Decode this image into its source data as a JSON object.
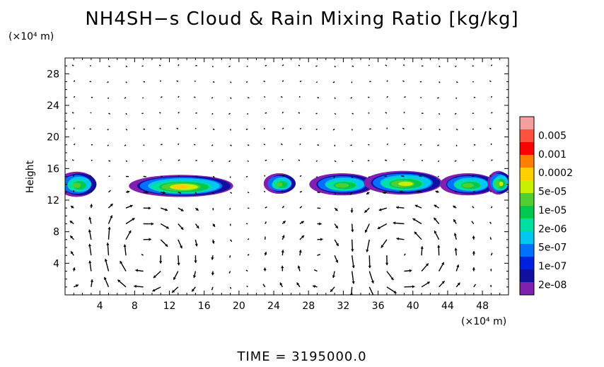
{
  "chart_data": {
    "type": "heatmap",
    "title": "NH4SH−s Cloud & Rain Mixing Ratio [kg/kg]",
    "ylabel": "Height",
    "x_unit": "(×10⁴ m)",
    "y_unit": "(×10⁴ m)",
    "footer": "TIME = 3195000.0",
    "xlim": [
      0,
      51
    ],
    "ylim": [
      0,
      30
    ],
    "x_ticks": [
      4,
      8,
      12,
      16,
      20,
      24,
      28,
      32,
      36,
      40,
      44,
      48
    ],
    "y_ticks": [
      4,
      8,
      12,
      16,
      20,
      24,
      28
    ],
    "colorbar": {
      "labels": [
        "0.005",
        "0.001",
        "0.0002",
        "5e-05",
        "1e-05",
        "2e-06",
        "5e-07",
        "1e-07",
        "2e-08"
      ],
      "colors": [
        "#f4a0a0",
        "#ff5040",
        "#ff0000",
        "#ff8000",
        "#ffd000",
        "#c8f000",
        "#50d030",
        "#00c850",
        "#00e0a0",
        "#00c8f0",
        "#0070ff",
        "#0020e0",
        "#1010a0",
        "#8020b0"
      ]
    },
    "cloud_layer": {
      "y_range": [
        12.3,
        16.3
      ],
      "blobs": [
        {
          "x": 1.5,
          "y": 14.0,
          "w": 4.5,
          "h": 3.2,
          "level": 6
        },
        {
          "x": 13.5,
          "y": 13.8,
          "w": 12.0,
          "h": 2.8,
          "level": 8
        },
        {
          "x": 24.8,
          "y": 14.1,
          "w": 3.6,
          "h": 2.6,
          "level": 6
        },
        {
          "x": 32.0,
          "y": 14.0,
          "w": 7.5,
          "h": 2.8,
          "level": 6
        },
        {
          "x": 39.0,
          "y": 14.2,
          "w": 9.0,
          "h": 3.0,
          "level": 7
        },
        {
          "x": 46.5,
          "y": 14.0,
          "w": 6.5,
          "h": 2.8,
          "level": 6
        },
        {
          "x": 50.0,
          "y": 14.2,
          "w": 2.5,
          "h": 3.0,
          "level": 7
        }
      ]
    },
    "circulation_cells": [
      {
        "x": 8.5,
        "y": 5.0,
        "strength": 1.0,
        "sense": -1
      },
      {
        "x": 38.5,
        "y": 5.0,
        "strength": 1.0,
        "sense": 1
      },
      {
        "x": 30.5,
        "y": 4.0,
        "strength": 0.5,
        "sense": -1
      },
      {
        "x": 2.0,
        "y": 4.0,
        "strength": 0.5,
        "sense": 1
      }
    ]
  }
}
